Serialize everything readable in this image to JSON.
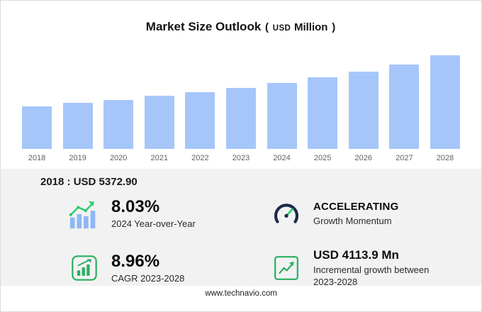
{
  "title": {
    "main": "Market Size Outlook",
    "paren_open": "(",
    "unit": "USD",
    "unit2": "Million",
    "paren_close": ")"
  },
  "chart_data": {
    "type": "bar",
    "title": "Market Size Outlook (USD Million)",
    "xlabel": "Year",
    "ylabel": "USD Million",
    "categories": [
      "2018",
      "2019",
      "2020",
      "2021",
      "2022",
      "2023",
      "2024",
      "2025",
      "2026",
      "2027",
      "2028"
    ],
    "values": [
      5372.9,
      5770,
      6197,
      6656,
      7148,
      7677,
      8293,
      8980,
      9750,
      10600,
      11790
    ],
    "ylim": [
      0,
      12000
    ],
    "grid": false,
    "legend": "none",
    "bar_color": "#a6c6fa",
    "annotation": "2018 : USD 5372.90"
  },
  "panel": {
    "base_year_line": "2018 : USD  5372.90",
    "stats": [
      {
        "icon": "growth-trend-bars-icon",
        "value": "8.03%",
        "label": "2024 Year-over-Year"
      },
      {
        "icon": "gauge-icon",
        "value": "ACCELERATING",
        "label": "Growth Momentum"
      },
      {
        "icon": "green-bar-chart-icon",
        "value": "8.96%",
        "label": "CAGR 2023-2028"
      },
      {
        "icon": "green-line-chart-icon",
        "value": "USD 4113.9 Mn",
        "label": "Incremental growth between 2023-2028"
      }
    ]
  },
  "footer": {
    "url": "www.technavio.com"
  },
  "colors": {
    "bar": "#a6c6fa",
    "panel_bg": "#f2f2f2",
    "green": "#27ae60",
    "navy": "#1b2a4a"
  }
}
